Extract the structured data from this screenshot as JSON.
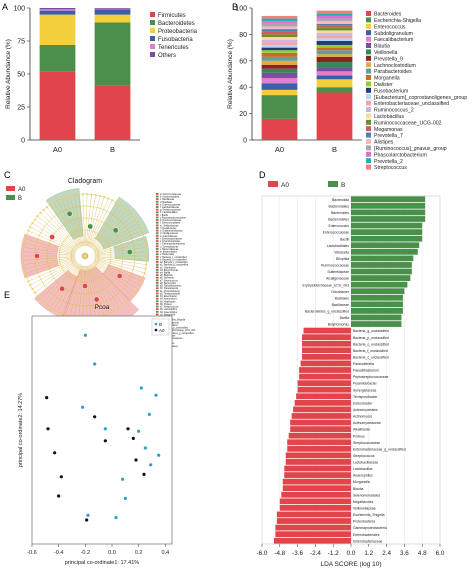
{
  "panels": {
    "A": {
      "label": "A"
    },
    "B": {
      "label": "B"
    },
    "C": {
      "label": "C"
    },
    "D": {
      "label": "D"
    },
    "E": {
      "label": "E"
    }
  },
  "colors": {
    "A0": "#e0454b",
    "B": "#4a8f4a"
  },
  "chart_data": [
    {
      "panel": "A",
      "type": "bar",
      "stacked": true,
      "categories": [
        "A0",
        "B"
      ],
      "ylabel": "Relative Abundance (%)",
      "ylim": [
        0,
        100
      ],
      "yticks": [
        "0",
        "25",
        "50",
        "75",
        "100"
      ],
      "series": [
        {
          "name": "Firmicutes",
          "color": "#e0454b",
          "values": [
            52,
            41
          ]
        },
        {
          "name": "Bacteroidetes",
          "color": "#4a8f4a",
          "values": [
            20,
            48
          ]
        },
        {
          "name": "Proteobacteria",
          "color": "#f2cf3b",
          "values": [
            23,
            6
          ]
        },
        {
          "name": "Fusobacteria",
          "color": "#3a5ea8",
          "values": [
            3,
            4
          ]
        },
        {
          "name": "Tenericutes",
          "color": "#e07fd0",
          "values": [
            1,
            0.5
          ]
        },
        {
          "name": "Others",
          "color": "#7a4f9a",
          "values": [
            1,
            0.5
          ]
        }
      ]
    },
    {
      "panel": "B",
      "type": "bar",
      "stacked": true,
      "categories": [
        "A0",
        "B"
      ],
      "ylabel": "Relative Abundance (%)",
      "ylim": [
        0,
        100
      ],
      "yticks": [
        "0",
        "20",
        "40",
        "60",
        "80",
        "100"
      ],
      "series": [
        {
          "name": "Bacteroides",
          "color": "#e0454b",
          "values": [
            16,
            36
          ]
        },
        {
          "name": "Escherichia-Shigella",
          "color": "#4a8f4a",
          "values": [
            18,
            4
          ]
        },
        {
          "name": "Enterococcus",
          "color": "#f2cf3b",
          "values": [
            4,
            6
          ]
        },
        {
          "name": "Subdoligranulum",
          "color": "#3a5ea8",
          "values": [
            5,
            3
          ]
        },
        {
          "name": "Faecalibacterium",
          "color": "#e07fd0",
          "values": [
            4,
            3
          ]
        },
        {
          "name": "Blautia",
          "color": "#7a4f9a",
          "values": [
            4,
            3
          ]
        },
        {
          "name": "Veillonella",
          "color": "#2e8b57",
          "values": [
            3,
            4
          ]
        },
        {
          "name": "Prevotella_9",
          "color": "#8b2323",
          "values": [
            3,
            4
          ]
        },
        {
          "name": "Lachnoclostridium",
          "color": "#e8a838",
          "values": [
            3,
            2
          ]
        },
        {
          "name": "Parabacteroides",
          "color": "#5f9ea0",
          "values": [
            3,
            3
          ]
        },
        {
          "name": "Morganella",
          "color": "#d2691e",
          "values": [
            3,
            2
          ]
        },
        {
          "name": "Dialister",
          "color": "#9acd32",
          "values": [
            2,
            2
          ]
        },
        {
          "name": "Fusobacterium",
          "color": "#1e3f7a",
          "values": [
            2,
            3
          ]
        },
        {
          "name": "[Eubacterium]_coprostanoligenes_group",
          "color": "#b4d9ef",
          "values": [
            2,
            2
          ]
        },
        {
          "name": "Enterobacteriaceae_unclassified",
          "color": "#f4a3a8",
          "values": [
            2,
            2
          ]
        },
        {
          "name": "Ruminococcus_2",
          "color": "#c8b6e2",
          "values": [
            2,
            2
          ]
        },
        {
          "name": "Lactobacillus",
          "color": "#ffd9a0",
          "values": [
            2,
            2
          ]
        },
        {
          "name": "Ruminococcaceae_UCG-002",
          "color": "#6b8e23",
          "values": [
            2,
            2
          ]
        },
        {
          "name": "Megamonas",
          "color": "#cd5c5c",
          "values": [
            2,
            2
          ]
        },
        {
          "name": "Prevotella_7",
          "color": "#4682b4",
          "values": [
            2,
            1
          ]
        },
        {
          "name": "Alistipes",
          "color": "#ffb6c1",
          "values": [
            2,
            2
          ]
        },
        {
          "name": "[Ruminococcus]_gnavus_group",
          "color": "#a9a9a9",
          "values": [
            2,
            2
          ]
        },
        {
          "name": "Phascolarctobacterium",
          "color": "#da70d6",
          "values": [
            2,
            2
          ]
        },
        {
          "name": "Prevotella_2",
          "color": "#20b2aa",
          "values": [
            2,
            2
          ]
        },
        {
          "name": "Streptococcus",
          "color": "#f08080",
          "values": [
            2,
            2
          ]
        }
      ]
    },
    {
      "panel": "D",
      "type": "bar",
      "orientation": "horizontal",
      "xlabel": "LDA SCORE (log 10)",
      "xlim": [
        -6.0,
        6.0
      ],
      "xticks": [
        "-6.0",
        "-4.8",
        "-3.6",
        "-2.4",
        "-1.2",
        "0.0",
        "1.2",
        "2.4",
        "3.6",
        "4.8",
        "6.0"
      ],
      "legend": [
        {
          "name": "A0",
          "color": "#e0454b"
        },
        {
          "name": "B",
          "color": "#4a8f4a"
        }
      ],
      "categories": [
        "Bacteroidia",
        "Bacteroidales",
        "Bacteroides",
        "Bacteroidetes",
        "Enterococcus",
        "Enterococcaceae",
        "Bacilli",
        "Lactobacillales",
        "Weissella",
        "Bilophila",
        "Ruminococcaceae",
        "Sutterellaceae",
        "Alcaligenaceae",
        "Erysipelotrichaceae_UCG_003",
        "Odoribacter",
        "Bacillales",
        "Bacillaceae",
        "Bacteroidetes_g_unclassified",
        "Barilla",
        "Butyricimonas",
        "Bacteria_g_unclassified",
        "Bacteria_p_unclassified",
        "Bacteria_o_unclassified",
        "Bacteria_f_unclassified",
        "Bacteria_c_unclassified",
        "Parasutterella",
        "Faecalibacterium",
        "Peptostreptococcaceae",
        "Pyramidobacter",
        "Synergistaceae",
        "Terrisporobacter",
        "Enterobacter",
        "Actinomycetales",
        "Actinomyces",
        "Actinomycetaceae",
        "Alkalibacter",
        "Proteus",
        "Streptococcaceae",
        "Enterobacteriaceae_g_unclassified",
        "Streptococcus",
        "Lactobacillaceae",
        "Lactobacillus",
        "Anaerophilus",
        "Morganella",
        "Blautia",
        "Selenomonadales",
        "Negativicutes",
        "Veillonellaceae",
        "Escherichia_Shigella",
        "Proteobacteria",
        "Gammaproteobacteria",
        "Enterobacteriales",
        "Enterobacteriaceae"
      ],
      "values": [
        5.0,
        5.0,
        5.0,
        5.0,
        4.8,
        4.8,
        4.8,
        4.6,
        4.5,
        4.2,
        4.1,
        4.1,
        4.0,
        3.8,
        3.6,
        3.5,
        3.5,
        3.5,
        3.4,
        3.4,
        -3.2,
        -3.3,
        -3.3,
        -3.3,
        -3.3,
        -3.4,
        -3.5,
        -3.5,
        -3.6,
        -3.6,
        -3.7,
        -3.8,
        -3.9,
        -4.0,
        -4.1,
        -4.1,
        -4.2,
        -4.3,
        -4.3,
        -4.4,
        -4.4,
        -4.5,
        -4.5,
        -4.6,
        -4.6,
        -4.7,
        -4.8,
        -4.8,
        -5.0,
        -5.0,
        -5.1,
        -5.1,
        -5.2
      ]
    },
    {
      "panel": "E",
      "type": "scatter",
      "title": "Pcoa",
      "xlabel": "principal co-ordinate1: 17.41%",
      "ylabel": "principal co-ordinate2: 14.27%",
      "xlim": [
        -0.6,
        0.45
      ],
      "ylim": [
        -0.45,
        0.5
      ],
      "xticks": [
        -0.6,
        -0.4,
        -0.2,
        0.0,
        0.2,
        0.4
      ],
      "series": [
        {
          "name": "B",
          "color": "#2aa1c9",
          "points": [
            [
              -0.2,
              0.42
            ],
            [
              -0.13,
              0.3
            ],
            [
              -0.22,
              0.12
            ],
            [
              -0.05,
              0.03
            ],
            [
              0.22,
              0.2
            ],
            [
              0.28,
              0.09
            ],
            [
              0.33,
              0.17
            ],
            [
              0.2,
              0.02
            ],
            [
              0.25,
              -0.05
            ],
            [
              0.29,
              -0.12
            ],
            [
              0.35,
              -0.08
            ],
            [
              0.08,
              -0.18
            ],
            [
              0.1,
              -0.26
            ],
            [
              0.03,
              -0.34
            ],
            [
              -0.18,
              -0.33
            ]
          ]
        },
        {
          "name": "A0",
          "color": "#111111",
          "points": [
            [
              -0.49,
              0.16
            ],
            [
              -0.48,
              0.03
            ],
            [
              -0.43,
              -0.07
            ],
            [
              -0.38,
              -0.17
            ],
            [
              -0.4,
              -0.25
            ],
            [
              -0.13,
              0.08
            ],
            [
              0.12,
              0.03
            ],
            [
              0.16,
              -0.01
            ],
            [
              0.18,
              -0.1
            ],
            [
              0.24,
              -0.16
            ],
            [
              -0.05,
              -0.02
            ],
            [
              -0.19,
              -0.35
            ]
          ]
        }
      ]
    }
  ],
  "cladogram": {
    "title": "Cladogram",
    "legend": [
      {
        "name": "A0"
      },
      {
        "name": "B"
      }
    ],
    "labels": [
      "a: Actinomycetaceae",
      "b: Actinomycetales",
      "c: Bacillaceae",
      "d: Bacillales",
      "e: Enterococcaceae",
      "f: Lactobacillaceae",
      "g: Streptococcaceae",
      "h: Lactobacillales",
      "i: Bacilli",
      "j: Peptostreptococcaceae",
      "k: Ruminococcaceae",
      "l: Selenomonadales",
      "m: Veillonellaceae",
      "n: Negativicutes",
      "o: Erysipelotrichaceae",
      "p: Alcaligenaceae",
      "q: Sutterellaceae",
      "r: Enterobacteriaceae",
      "s: Enterobacteriales",
      "t: Gammaproteobacteria",
      "u: Synergistaceae",
      "v: Bacteroidaceae",
      "w: Bacteroidales",
      "x: Bacteroidia",
      "y: Bacteria_c_unclassified",
      "z: Bacteria_o_unclassified",
      "a0: Bacteria_f_unclassified",
      "a1: Bacteria_g_unclassified",
      "a2: Odoribacter",
      "a3: Butyricimonas",
      "a4: Barilla",
      "a5: Bilophila",
      "a6: Weissella",
      "a7: Enterococcus",
      "a8: Bacteroides",
      "a9: Faecalibacterium",
      "b0: Parasutterella",
      "b1: Pyramidobacter",
      "b2: Terrisporobacter",
      "b3: Enterobacter",
      "b4: Actinomyces",
      "b5: Alkalibacter",
      "b6: Proteus",
      "b7: Streptococcus",
      "b8: Lactobacillus",
      "b9: Anaerophilus",
      "c0: Morganella",
      "c1: Blautia",
      "c2: Escherichia_Shigella",
      "c3: Proteobacteria",
      "c4: Bacteroidetes",
      "c5: Bacteria_p_unclassified",
      "c6: Erysipelotrichaceae_UCG_003",
      "c7: Bacteroidetes_g_unclassified",
      "c8: Alkalibacter",
      "c9: Actinomycetaceae",
      "d0: Bacteria",
      "d1: Firmicutes",
      "d2: Synergistetes"
    ]
  }
}
